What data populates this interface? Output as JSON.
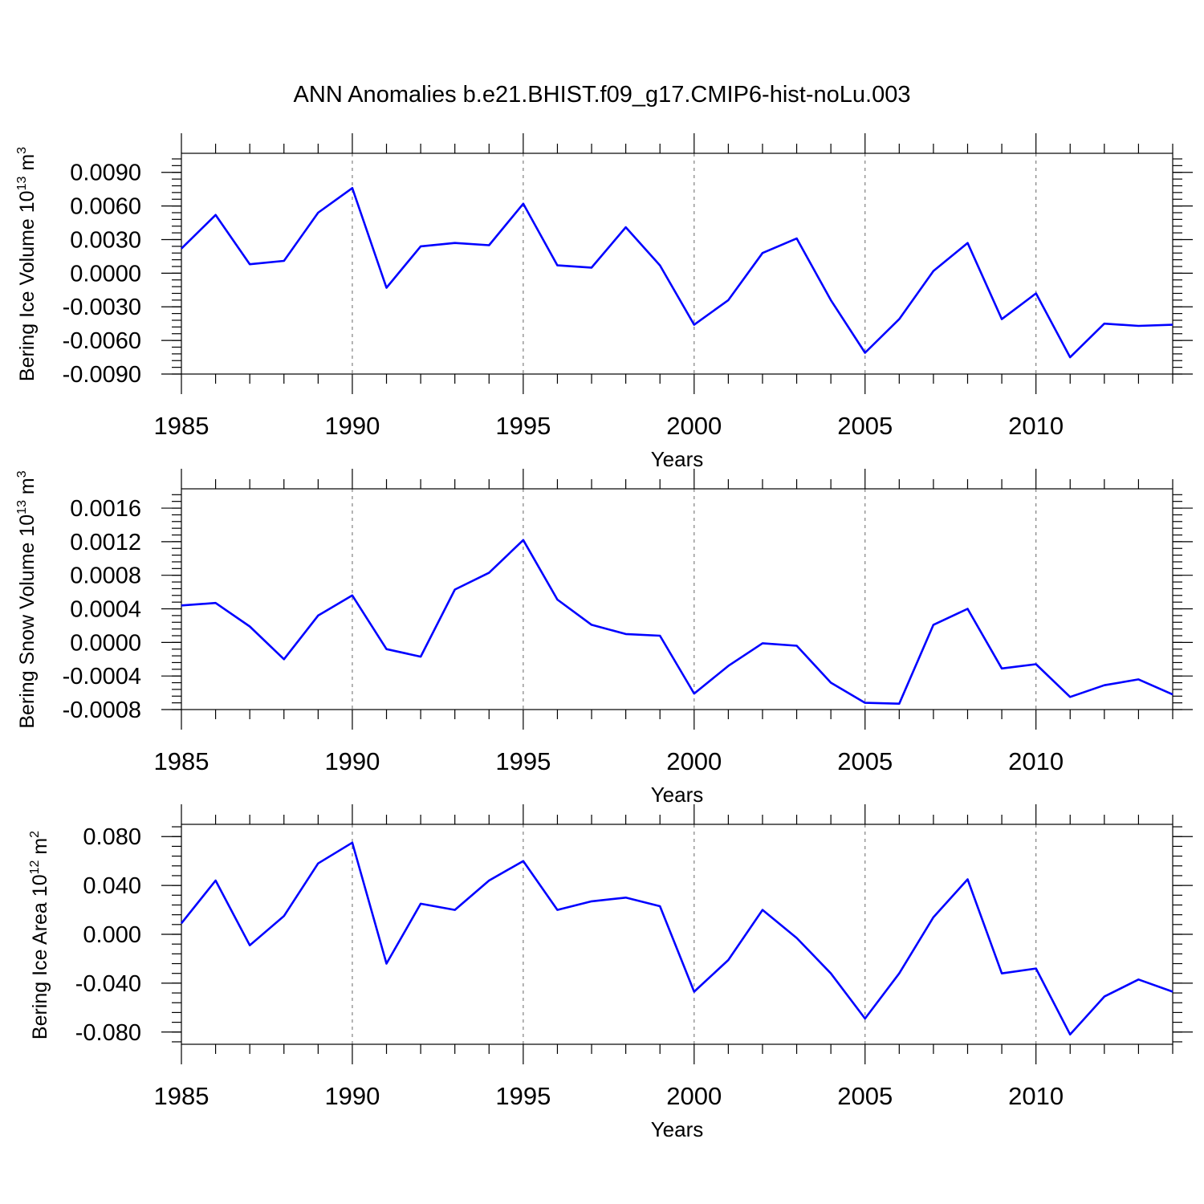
{
  "figure": {
    "title": "ANN Anomalies b.e21.BHIST.f09_g17.CMIP6-hist-noLu.003"
  },
  "chart_data": [
    {
      "type": "line",
      "title": "",
      "xlabel": "Years",
      "ylabel_text": "Bering Ice Volume 10",
      "ylabel_exp": "13",
      "ylabel_unit": "m",
      "ylabel_unit_exp": "3",
      "x": [
        1985,
        1986,
        1987,
        1988,
        1989,
        1990,
        1991,
        1992,
        1993,
        1994,
        1995,
        1996,
        1997,
        1998,
        1999,
        2000,
        2001,
        2002,
        2003,
        2004,
        2005,
        2006,
        2007,
        2008,
        2009,
        2010,
        2011,
        2012,
        2013,
        2014
      ],
      "xlim": [
        1985,
        2014
      ],
      "xticks": [
        "1985",
        "1990",
        "1995",
        "2000",
        "2005",
        "2010"
      ],
      "ylim": [
        -0.009,
        0.0107
      ],
      "yticks": [
        "0.0090",
        "0.0060",
        "0.0030",
        "0.0000",
        "-0.0030",
        "-0.0060",
        "-0.0090"
      ],
      "ytick_values": [
        0.009,
        0.006,
        0.003,
        0.0,
        -0.003,
        -0.006,
        -0.009
      ],
      "series": [
        {
          "name": "Bering Ice Volume",
          "color": "#0000ff",
          "values": [
            0.0022,
            0.0052,
            0.0008,
            0.0011,
            0.0054,
            0.0076,
            -0.0013,
            0.0024,
            0.0027,
            0.0025,
            0.0062,
            0.0007,
            0.0005,
            0.0041,
            0.0007,
            -0.0046,
            -0.0024,
            0.0018,
            0.0031,
            -0.0024,
            -0.0071,
            -0.0041,
            0.0002,
            0.0027,
            -0.0041,
            -0.0018,
            -0.0075,
            -0.0045,
            -0.0047,
            -0.0046
          ]
        }
      ]
    },
    {
      "type": "line",
      "title": "",
      "xlabel": "Years",
      "ylabel_text": "Bering Snow Volume 10",
      "ylabel_exp": "13",
      "ylabel_unit": "m",
      "ylabel_unit_exp": "3",
      "x": [
        1985,
        1986,
        1987,
        1988,
        1989,
        1990,
        1991,
        1992,
        1993,
        1994,
        1995,
        1996,
        1997,
        1998,
        1999,
        2000,
        2001,
        2002,
        2003,
        2004,
        2005,
        2006,
        2007,
        2008,
        2009,
        2010,
        2011,
        2012,
        2013,
        2014
      ],
      "xlim": [
        1985,
        2014
      ],
      "xticks": [
        "1985",
        "1990",
        "1995",
        "2000",
        "2005",
        "2010"
      ],
      "ylim": [
        -0.0008,
        0.00183
      ],
      "yticks": [
        "0.0016",
        "0.0012",
        "0.0008",
        "0.0004",
        "0.0000",
        "-0.0004",
        "-0.0008"
      ],
      "ytick_values": [
        0.0016,
        0.0012,
        0.0008,
        0.0004,
        0.0,
        -0.0004,
        -0.0008
      ],
      "series": [
        {
          "name": "Bering Snow Volume",
          "color": "#0000ff",
          "values": [
            0.00044,
            0.00047,
            0.00019,
            -0.0002,
            0.00032,
            0.00056,
            -8e-05,
            -0.00017,
            0.00063,
            0.00083,
            0.00122,
            0.00051,
            0.00021,
            0.0001,
            8e-05,
            -0.00061,
            -0.00028,
            -1e-05,
            -4e-05,
            -0.00048,
            -0.00072,
            -0.00073,
            0.00021,
            0.0004,
            -0.00031,
            -0.00026,
            -0.00065,
            -0.00051,
            -0.00044,
            -0.00062
          ]
        }
      ]
    },
    {
      "type": "line",
      "title": "",
      "xlabel": "Years",
      "ylabel_text": "Bering Ice Area 10",
      "ylabel_exp": "12",
      "ylabel_unit": "m",
      "ylabel_unit_exp": "2",
      "x": [
        1985,
        1986,
        1987,
        1988,
        1989,
        1990,
        1991,
        1992,
        1993,
        1994,
        1995,
        1996,
        1997,
        1998,
        1999,
        2000,
        2001,
        2002,
        2003,
        2004,
        2005,
        2006,
        2007,
        2008,
        2009,
        2010,
        2011,
        2012,
        2013,
        2014
      ],
      "xlim": [
        1985,
        2014
      ],
      "xticks": [
        "1985",
        "1990",
        "1995",
        "2000",
        "2005",
        "2010"
      ],
      "ylim": [
        -0.09,
        0.09
      ],
      "yticks": [
        "0.080",
        "0.040",
        "0.000",
        "-0.040",
        "-0.080"
      ],
      "ytick_values": [
        0.08,
        0.04,
        0.0,
        -0.04,
        -0.08
      ],
      "series": [
        {
          "name": "Bering Ice Area",
          "color": "#0000ff",
          "values": [
            0.009,
            0.044,
            -0.009,
            0.015,
            0.058,
            0.075,
            -0.024,
            0.025,
            0.02,
            0.044,
            0.06,
            0.02,
            0.027,
            0.03,
            0.023,
            -0.047,
            -0.021,
            0.02,
            -0.003,
            -0.032,
            -0.069,
            -0.032,
            0.014,
            0.045,
            -0.032,
            -0.028,
            -0.082,
            -0.051,
            -0.037,
            -0.047
          ]
        }
      ]
    }
  ]
}
